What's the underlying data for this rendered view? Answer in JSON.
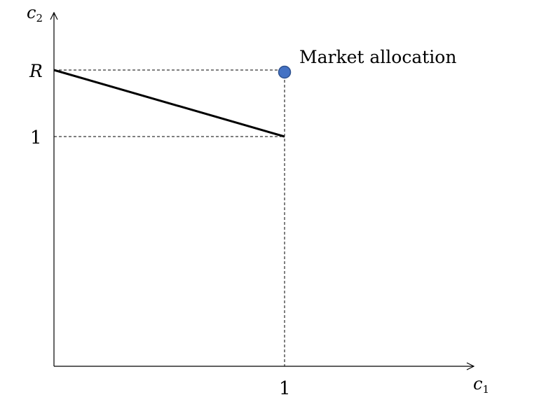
{
  "axes": {
    "x_label": "c",
    "x_label_sub": "1",
    "y_label": "c",
    "y_label_sub": "2"
  },
  "ticks": {
    "x_tick_1": "1",
    "y_tick_1": "1",
    "y_tick_R": "R"
  },
  "point": {
    "label": "Market allocation",
    "color": "#4472C4"
  },
  "colors": {
    "axis": "#000000",
    "line": "#000000",
    "guide": "#000000"
  }
}
